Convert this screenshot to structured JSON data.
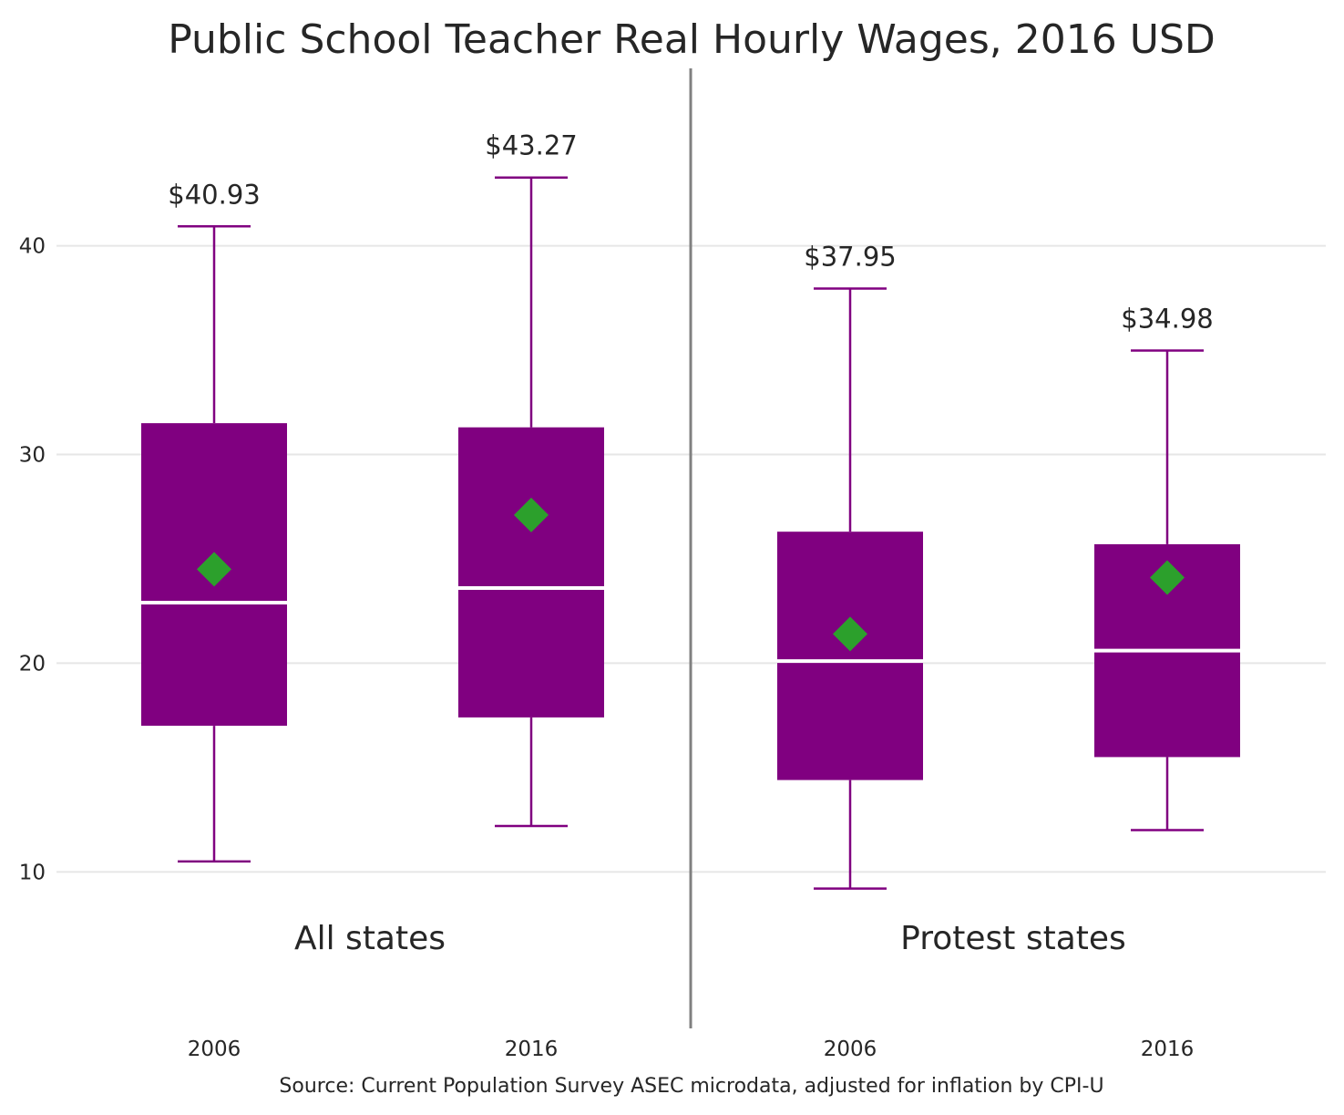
{
  "chart_data": {
    "type": "box",
    "title": "Public School Teacher Real Hourly Wages, 2016 USD",
    "source": "Source: Current Population Survey ASEC microdata, adjusted for inflation by CPI-U",
    "xlabel": "",
    "ylabel": "",
    "ylim": [
      2.5,
      48.5
    ],
    "yticks": [
      10,
      20,
      30,
      40
    ],
    "grid": "horizontal",
    "legend": "none",
    "colors": {
      "box": "#800080",
      "median": "#ffffff",
      "mean_marker": "#2ca02c",
      "divider": "#808080",
      "grid": "#e6e6e6"
    },
    "groups": [
      {
        "label": "All states",
        "boxes": [
          {
            "category": "2006",
            "whisker_low": 10.5,
            "q1": 17.0,
            "median": 22.9,
            "q3": 31.5,
            "whisker_high": 40.93,
            "mean": 24.5,
            "high_label": "$40.93"
          },
          {
            "category": "2016",
            "whisker_low": 12.2,
            "q1": 17.4,
            "median": 23.6,
            "q3": 31.3,
            "whisker_high": 43.27,
            "mean": 27.1,
            "high_label": "$43.27"
          }
        ]
      },
      {
        "label": "Protest states",
        "boxes": [
          {
            "category": "2006",
            "whisker_low": 9.2,
            "q1": 14.4,
            "median": 20.1,
            "q3": 26.3,
            "whisker_high": 37.95,
            "mean": 21.4,
            "high_label": "$37.95"
          },
          {
            "category": "2016",
            "whisker_low": 12.0,
            "q1": 15.5,
            "median": 20.6,
            "q3": 25.7,
            "whisker_high": 34.98,
            "mean": 24.1,
            "high_label": "$34.98"
          }
        ]
      }
    ]
  }
}
